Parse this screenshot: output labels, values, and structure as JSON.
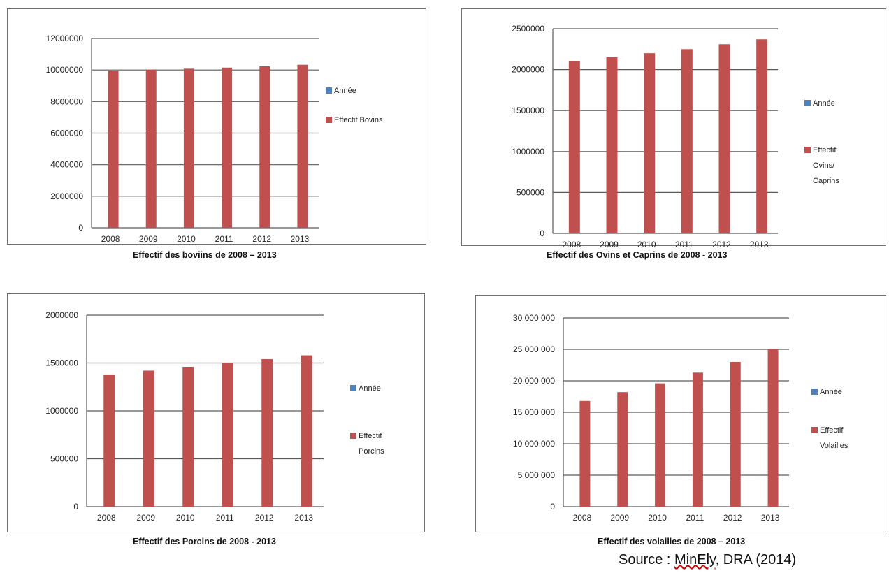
{
  "chart_data": [
    {
      "type": "bar",
      "title": "",
      "categories": [
        "2008",
        "2009",
        "2010",
        "2011",
        "2012",
        "2013"
      ],
      "series": [
        {
          "name": "Année",
          "values": [
            null,
            null,
            null,
            null,
            null,
            null
          ],
          "color": "#4f81bd"
        },
        {
          "name": "Effectif Bovins",
          "values": [
            9950000,
            10020000,
            10080000,
            10150000,
            10230000,
            10330000
          ],
          "color": "#c0504d"
        }
      ],
      "ylim": [
        0,
        12000000
      ],
      "yticks": [
        "0",
        "2000000",
        "4000000",
        "6000000",
        "8000000",
        "10000000",
        "12000000"
      ],
      "grid": true,
      "legend": "right",
      "caption": "Effectif des boviins de 2008 – 2013"
    },
    {
      "type": "bar",
      "title": "",
      "categories": [
        "2008",
        "2009",
        "2010",
        "2011",
        "2012",
        "2013"
      ],
      "series": [
        {
          "name": "Année",
          "values": [
            null,
            null,
            null,
            null,
            null,
            null
          ],
          "color": "#4f81bd"
        },
        {
          "name": "Effectif Ovins/ Caprins",
          "values": [
            2100000,
            2150000,
            2200000,
            2250000,
            2310000,
            2370000
          ],
          "color": "#c0504d"
        }
      ],
      "ylim": [
        0,
        2500000
      ],
      "yticks": [
        "0",
        "500000",
        "1000000",
        "1500000",
        "2000000",
        "2500000"
      ],
      "grid": true,
      "legend": "right",
      "caption": "Effectif des Ovins et Caprins de 2008 - 2013"
    },
    {
      "type": "bar",
      "title": "",
      "categories": [
        "2008",
        "2009",
        "2010",
        "2011",
        "2012",
        "2013"
      ],
      "series": [
        {
          "name": "Année",
          "values": [
            null,
            null,
            null,
            null,
            null,
            null
          ],
          "color": "#4f81bd"
        },
        {
          "name": "Effectif Porcins",
          "values": [
            1380000,
            1420000,
            1460000,
            1500000,
            1540000,
            1580000
          ],
          "color": "#c0504d"
        }
      ],
      "ylim": [
        0,
        2000000
      ],
      "yticks": [
        "0",
        "500000",
        "1000000",
        "1500000",
        "2000000"
      ],
      "grid": true,
      "legend": "right",
      "caption": "Effectif des Porcins de 2008 - 2013"
    },
    {
      "type": "bar",
      "title": "",
      "categories": [
        "2008",
        "2009",
        "2010",
        "2011",
        "2012",
        "2013"
      ],
      "series": [
        {
          "name": "Année",
          "values": [
            null,
            null,
            null,
            null,
            null,
            null
          ],
          "color": "#4f81bd"
        },
        {
          "name": "Effectif Volailles",
          "values": [
            16800000,
            18200000,
            19600000,
            21300000,
            23000000,
            25000000
          ],
          "color": "#c0504d"
        }
      ],
      "ylim": [
        0,
        30000000
      ],
      "yticks": [
        "0",
        "5 000 000",
        "10 000 000",
        "15 000 000",
        "20 000 000",
        "25 000 000",
        "30 000 000"
      ],
      "grid": true,
      "legend": "right",
      "caption": "Effectif des volailles de 2008 – 2013"
    }
  ],
  "source": {
    "prefix": "Source : ",
    "org": "MinEly",
    "rest": ", DRA (2014)"
  }
}
